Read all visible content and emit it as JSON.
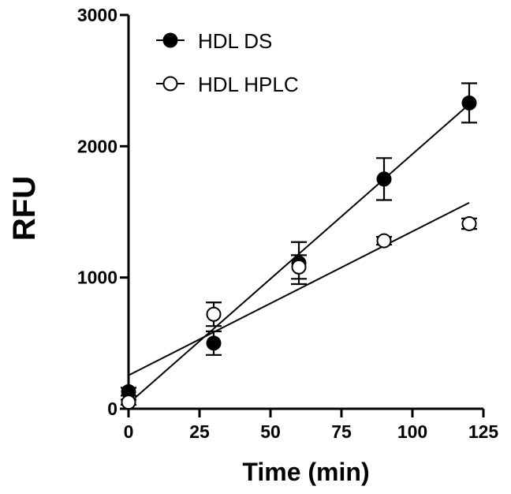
{
  "chart_data": {
    "type": "scatter",
    "xlabel": "Time (min)",
    "ylabel": "RFU",
    "xlim": [
      0,
      125
    ],
    "ylim": [
      0,
      3000
    ],
    "x_ticks": [
      0,
      25,
      50,
      75,
      100,
      125
    ],
    "y_ticks": [
      0,
      1000,
      2000,
      3000
    ],
    "x_tick_labels": [
      "0",
      "25",
      "50",
      "75",
      "100",
      "125"
    ],
    "y_tick_labels": [
      "0",
      "1000",
      "2000",
      "3000"
    ],
    "legend_position": "top-left",
    "grid": false,
    "series": [
      {
        "name": "HDL DS",
        "marker": "filled-circle",
        "color": "#000000",
        "x": [
          0,
          30,
          60,
          90,
          120
        ],
        "y": [
          130,
          500,
          1110,
          1750,
          2330
        ],
        "yerr": [
          30,
          90,
          160,
          160,
          150
        ],
        "fit": {
          "x0": 0,
          "y0": 40,
          "x1": 120,
          "y1": 2320
        }
      },
      {
        "name": "HDL HPLC",
        "marker": "open-circle",
        "color": "#000000",
        "x": [
          0,
          30,
          60,
          90,
          120
        ],
        "y": [
          50,
          720,
          1080,
          1280,
          1410
        ],
        "yerr": [
          20,
          90,
          90,
          30,
          40
        ],
        "fit": {
          "x0": 0,
          "y0": 255,
          "x1": 120,
          "y1": 1570
        }
      }
    ]
  }
}
